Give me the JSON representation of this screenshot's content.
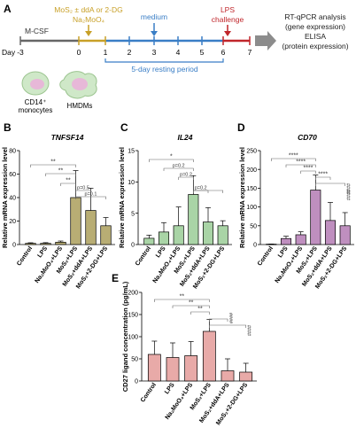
{
  "figure": {
    "panel_letters": [
      "A",
      "B",
      "C",
      "D",
      "E"
    ],
    "timeline": {
      "day_label": "Day",
      "days": [
        "-3",
        "0",
        "1",
        "2",
        "3",
        "4",
        "5",
        "6",
        "7"
      ],
      "mcsf": "M-CSF",
      "treatment_line1": "MoS₂ ± ddA or 2-DG",
      "treatment_line2": "Na₂MoO₄",
      "medium": "medium",
      "lps_line1": "LPS",
      "lps_line2": "challenge",
      "rest": "5-day resting period",
      "analysis": [
        "RT-qPCR analysis",
        "(gene expression)",
        "ELISA",
        "(protein expression)"
      ],
      "cell1": "CD14⁺",
      "cell1b": "monocytes",
      "cell2": "HMDMs",
      "colors": {
        "mcsf": "#555555",
        "treatment": "#c8a028",
        "medium": "#3a7ec6",
        "lps": "#c0262b",
        "analysis_arrow": "#8c8c8c"
      }
    }
  },
  "chart_data": [
    {
      "type": "bar",
      "panel": "B",
      "title": "TNFSF14",
      "ylabel": "Relative mRNA expression level",
      "ylim": [
        0,
        80
      ],
      "yticks": [
        0,
        20,
        40,
        60,
        80
      ],
      "categories": [
        "Control",
        "LPS",
        "Na₂MoO₄+LPS",
        "MoS₂+LPS",
        "MoS₂+ddA+LPS",
        "MoS₂+2-DG+LPS"
      ],
      "values": [
        1,
        1,
        2,
        40,
        29,
        16
      ],
      "errors": [
        0.5,
        0.6,
        1,
        23,
        19,
        7
      ],
      "color": "#b8ad74",
      "significance": [
        "**",
        "**",
        "**",
        "p=0.5",
        "p=0.1"
      ]
    },
    {
      "type": "bar",
      "panel": "C",
      "title": "IL24",
      "ylabel": "Relative mRNA expression level",
      "ylim": [
        0,
        15
      ],
      "yticks": [
        0,
        5,
        10,
        15
      ],
      "categories": [
        "Control",
        "LPS",
        "Na₂MoO₄+LPS",
        "MoS₂+LPS",
        "MoS₂+ddA+LPS",
        "MoS₂+2-DG+LPS"
      ],
      "values": [
        1,
        2,
        3,
        8,
        3.6,
        3
      ],
      "errors": [
        0.5,
        1.5,
        3,
        3,
        2.3,
        0.8
      ],
      "color": "#a9d4a6",
      "significance": [
        "*",
        "p=0.2",
        "p=0.2",
        "p=0.2"
      ]
    },
    {
      "type": "bar",
      "panel": "D",
      "title": "CD70",
      "ylabel": "Relative mRNA expression level",
      "ylim": [
        0,
        250
      ],
      "yticks": [
        0,
        50,
        100,
        150,
        200,
        250
      ],
      "categories": [
        "Control",
        "LPS",
        "Na₂MoO₄+LPS",
        "MoS₂+LPS",
        "MoS₂+ddA+LPS",
        "MoS₂+2-DG+LPS"
      ],
      "values": [
        1,
        16,
        26,
        145,
        64,
        50
      ],
      "errors": [
        0.5,
        6,
        8,
        40,
        48,
        35
      ],
      "color": "#bf8fbf",
      "significance": [
        "****",
        "****",
        "****",
        "****",
        "####",
        "####"
      ]
    },
    {
      "type": "bar",
      "panel": "E",
      "title": "",
      "ylabel": "CD27 ligand concentration (pg/mL)",
      "ylim": [
        0,
        200
      ],
      "yticks": [
        0,
        50,
        100,
        150,
        200
      ],
      "categories": [
        "Control",
        "LPS",
        "Na₂MoO₄+LPS",
        "MoS₂+LPS",
        "MoS₂+ddA+LPS",
        "MoS₂+2-DG+LPS"
      ],
      "values": [
        60,
        53,
        57,
        112,
        23,
        20
      ],
      "errors": [
        30,
        33,
        32,
        27,
        27,
        20
      ],
      "color": "#e8aaa8",
      "significance": [
        "**",
        "**",
        "**",
        "####",
        "####"
      ]
    }
  ]
}
